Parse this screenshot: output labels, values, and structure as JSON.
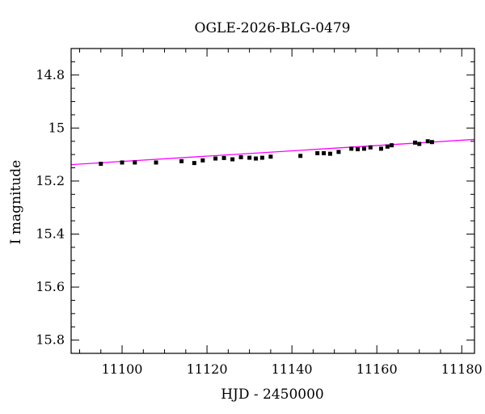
{
  "chart_data": {
    "type": "scatter",
    "title": "OGLE-2026-BLG-0479",
    "xlabel": "HJD - 2450000",
    "ylabel": "I magnitude",
    "xlim": [
      11088,
      11183
    ],
    "ylim": [
      15.85,
      14.7
    ],
    "y_inverted": true,
    "x_ticks_major": [
      11100,
      11120,
      11140,
      11160,
      11180
    ],
    "x_tick_labels": [
      "11100",
      "11120",
      "11140",
      "11160",
      "11180"
    ],
    "y_ticks_major": [
      14.8,
      15.0,
      15.2,
      15.4,
      15.6,
      15.8
    ],
    "y_tick_labels": [
      "14.8",
      "15",
      "15.2",
      "15.4",
      "15.6",
      "15.8"
    ],
    "grid": false,
    "series": [
      {
        "kind": "points",
        "color": "#000000",
        "points": [
          {
            "x": 11095,
            "y": 15.135,
            "err": 0.007
          },
          {
            "x": 11100,
            "y": 15.13,
            "err": 0.006
          },
          {
            "x": 11103,
            "y": 15.13,
            "err": 0.006
          },
          {
            "x": 11108,
            "y": 15.13,
            "err": 0.007
          },
          {
            "x": 11114,
            "y": 15.125,
            "err": 0.006
          },
          {
            "x": 11117,
            "y": 15.132,
            "err": 0.006
          },
          {
            "x": 11119,
            "y": 15.122,
            "err": 0.005
          },
          {
            "x": 11122,
            "y": 15.115,
            "err": 0.005
          },
          {
            "x": 11124,
            "y": 15.113,
            "err": 0.005
          },
          {
            "x": 11126,
            "y": 15.118,
            "err": 0.005
          },
          {
            "x": 11128,
            "y": 15.11,
            "err": 0.005
          },
          {
            "x": 11130,
            "y": 15.112,
            "err": 0.005
          },
          {
            "x": 11131.5,
            "y": 15.115,
            "err": 0.005
          },
          {
            "x": 11133,
            "y": 15.112,
            "err": 0.005
          },
          {
            "x": 11135,
            "y": 15.108,
            "err": 0.005
          },
          {
            "x": 11142,
            "y": 15.105,
            "err": 0.005
          },
          {
            "x": 11146,
            "y": 15.095,
            "err": 0.005
          },
          {
            "x": 11147.5,
            "y": 15.095,
            "err": 0.005
          },
          {
            "x": 11149,
            "y": 15.097,
            "err": 0.005
          },
          {
            "x": 11151,
            "y": 15.09,
            "err": 0.005
          },
          {
            "x": 11154,
            "y": 15.078,
            "err": 0.005
          },
          {
            "x": 11155.5,
            "y": 15.08,
            "err": 0.005
          },
          {
            "x": 11157,
            "y": 15.078,
            "err": 0.005
          },
          {
            "x": 11158.5,
            "y": 15.073,
            "err": 0.005
          },
          {
            "x": 11161,
            "y": 15.078,
            "err": 0.005
          },
          {
            "x": 11162.5,
            "y": 15.07,
            "err": 0.005
          },
          {
            "x": 11163.5,
            "y": 15.065,
            "err": 0.007
          },
          {
            "x": 11169,
            "y": 15.055,
            "err": 0.005
          },
          {
            "x": 11170,
            "y": 15.06,
            "err": 0.005
          },
          {
            "x": 11172,
            "y": 15.05,
            "err": 0.005
          },
          {
            "x": 11173,
            "y": 15.053,
            "err": 0.005
          }
        ]
      },
      {
        "kind": "line",
        "color": "#ff00ff",
        "x": [
          11088,
          11183
        ],
        "y": [
          15.138,
          15.043
        ]
      }
    ]
  }
}
